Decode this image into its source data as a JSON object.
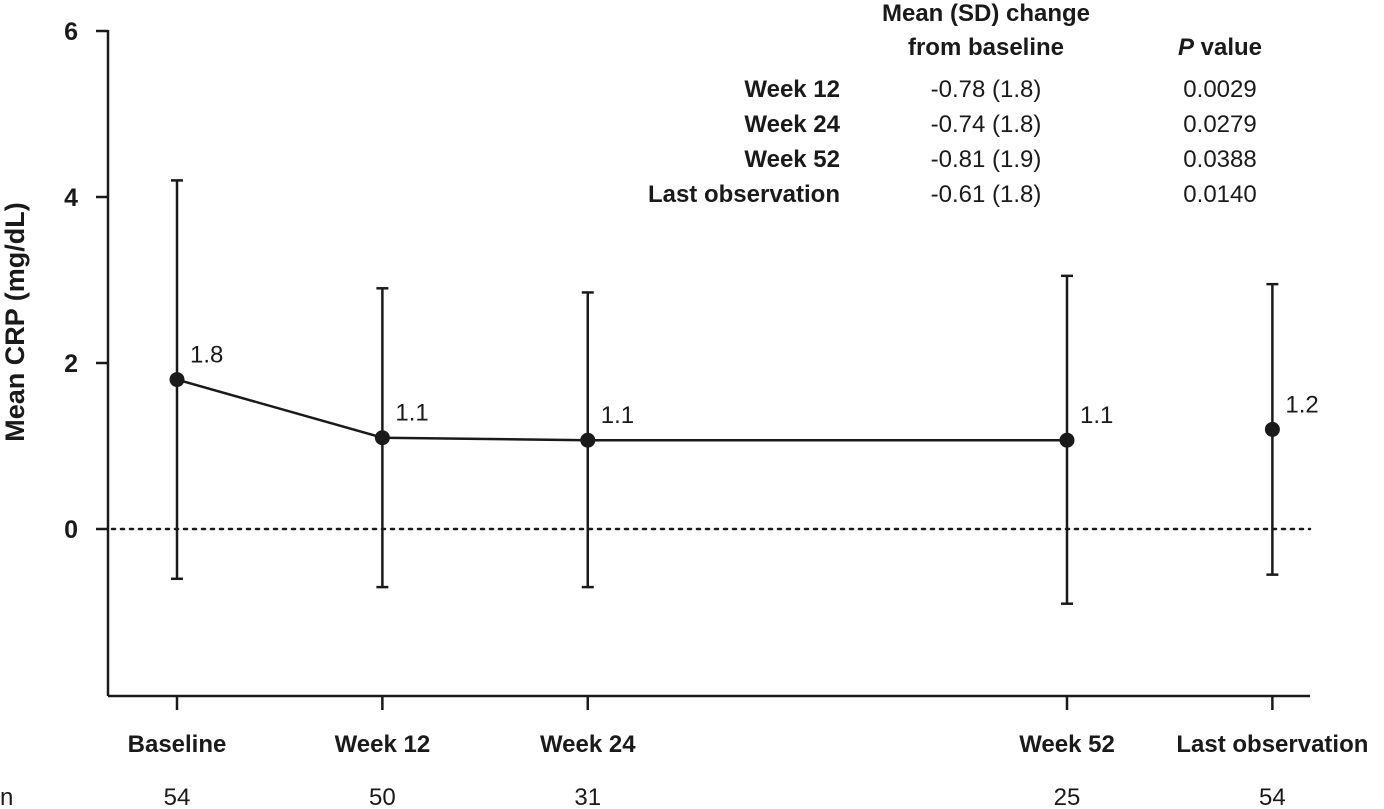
{
  "chart_data": {
    "type": "line",
    "ylabel": "Mean CRP (mg/dL)",
    "ylim": [
      -2,
      6
    ],
    "yticks": [
      "0",
      "2",
      "4",
      "6"
    ],
    "categories": [
      "Baseline",
      "Week 12",
      "Week 24",
      "Week 52",
      "Last observation"
    ],
    "x_weeks": [
      0,
      12,
      24,
      52,
      64
    ],
    "n_row_label": "n",
    "n_values": [
      "54",
      "50",
      "31",
      "25",
      "54"
    ],
    "points": [
      {
        "label": "Baseline",
        "x": 0,
        "mean": 1.8,
        "upper": 4.2,
        "lower": -0.6,
        "value_label": "1.8",
        "connected": true
      },
      {
        "label": "Week 12",
        "x": 12,
        "mean": 1.1,
        "upper": 2.9,
        "lower": -0.7,
        "value_label": "1.1",
        "connected": true
      },
      {
        "label": "Week 24",
        "x": 24,
        "mean": 1.07,
        "upper": 2.85,
        "lower": -0.7,
        "value_label": "1.1",
        "connected": true
      },
      {
        "label": "Week 52",
        "x": 52,
        "mean": 1.07,
        "upper": 3.05,
        "lower": -0.9,
        "value_label": "1.1",
        "connected": true
      },
      {
        "label": "Last observation",
        "x": 64,
        "mean": 1.2,
        "upper": 2.95,
        "lower": -0.55,
        "value_label": "1.2",
        "connected": false
      }
    ],
    "reference_line": {
      "y": 0,
      "style": "dotted"
    },
    "grid": false,
    "table": {
      "header_change_line1": "Mean (SD) change",
      "header_change_line2": "from baseline",
      "header_p_italic": "P",
      "header_p_rest": " value",
      "rows": [
        {
          "label": "Week 12",
          "change": "-0.78 (1.8)",
          "p": "0.0029"
        },
        {
          "label": "Week 24",
          "change": "-0.74 (1.8)",
          "p": "0.0279"
        },
        {
          "label": "Week 52",
          "change": "-0.81 (1.9)",
          "p": "0.0388"
        },
        {
          "label": "Last observation",
          "change": "-0.61 (1.8)",
          "p": "0.0140"
        }
      ]
    }
  }
}
